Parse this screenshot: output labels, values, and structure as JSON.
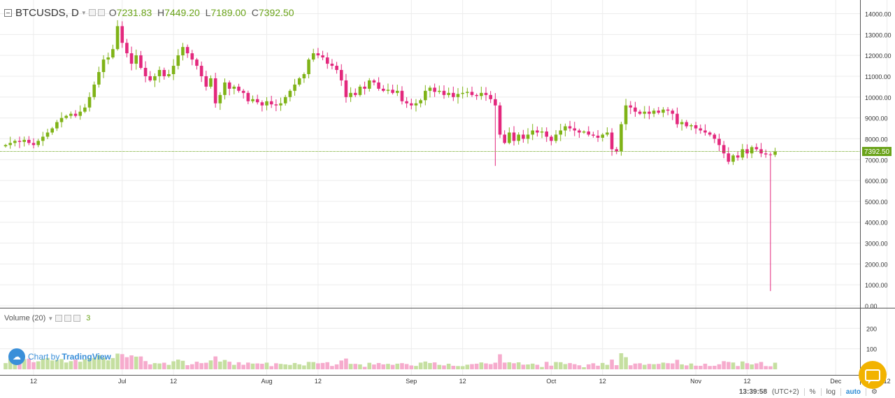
{
  "header": {
    "symbol": "BTCUSDS, D",
    "open_label": "O",
    "open": "7231.83",
    "high_label": "H",
    "high": "7449.20",
    "low_label": "L",
    "low": "7189.00",
    "close_label": "C",
    "close": "7392.50"
  },
  "volume_header": {
    "label": "Volume (20)",
    "value": "3"
  },
  "branding": {
    "prefix": "Chart by",
    "name": "TradingView"
  },
  "bottom_bar": {
    "time": "13:39:58",
    "timezone": "(UTC+2)",
    "percent": "%",
    "log": "log",
    "auto": "auto"
  },
  "colors": {
    "up": "#7fb317",
    "down": "#e3287d",
    "vol_up": "#c5dfa0",
    "vol_down": "#f6abcd",
    "price_line": "#6aa319",
    "grid": "#ececec"
  },
  "icons": [
    "collapse-icon",
    "chevron-down-icon",
    "settings-icon",
    "close-icon",
    "tradingview-cloud-icon",
    "chat-icon",
    "gear-icon"
  ],
  "chart_data": {
    "type": "candlestick",
    "price_axis": {
      "ylim": [
        0,
        14000
      ],
      "ticks": [
        "14000.00",
        "13000.00",
        "12000.00",
        "11000.00",
        "10000.00",
        "9000.00",
        "8000.00",
        "7000.00",
        "6000.00",
        "5000.00",
        "4000.00",
        "3000.00",
        "2000.00",
        "1000.00",
        "0.00"
      ]
    },
    "volume_axis": {
      "ylim": [
        0,
        300
      ],
      "ticks": [
        "200",
        "100"
      ]
    },
    "x_ticks": [
      {
        "label": "12",
        "bar": 6
      },
      {
        "label": "Jul",
        "bar": 25
      },
      {
        "label": "12",
        "bar": 36
      },
      {
        "label": "Aug",
        "bar": 56
      },
      {
        "label": "12",
        "bar": 67
      },
      {
        "label": "Sep",
        "bar": 87
      },
      {
        "label": "12",
        "bar": 98
      },
      {
        "label": "Oct",
        "bar": 117
      },
      {
        "label": "12",
        "bar": 128
      },
      {
        "label": "Nov",
        "bar": 148
      },
      {
        "label": "12",
        "bar": 159
      },
      {
        "label": "Dec",
        "bar": 178
      },
      {
        "label": "12",
        "bar": 189
      }
    ],
    "last_price": {
      "label": "7392.50",
      "value": 7392.5
    },
    "candles_close": [
      7700,
      7800,
      7900,
      7850,
      7950,
      7800,
      7700,
      7900,
      8100,
      8300,
      8500,
      8800,
      9000,
      9100,
      9200,
      9100,
      9300,
      9500,
      10000,
      10600,
      11200,
      11800,
      11900,
      12300,
      13400,
      12600,
      12100,
      11600,
      12000,
      11400,
      11000,
      10800,
      11000,
      11300,
      11000,
      11100,
      11500,
      12000,
      12400,
      12100,
      11800,
      11500,
      11000,
      10500,
      10900,
      9700,
      10100,
      10700,
      10400,
      10500,
      10300,
      10200,
      9800,
      9900,
      9750,
      9600,
      9800,
      9650,
      9600,
      9700,
      10000,
      10300,
      10600,
      10900,
      11100,
      11800,
      12100,
      12000,
      11900,
      11600,
      11500,
      11300,
      10800,
      10000,
      10200,
      10100,
      10500,
      10400,
      10800,
      10700,
      10400,
      10300,
      10350,
      10200,
      10300,
      9800,
      9700,
      9600,
      9700,
      9850,
      10300,
      10450,
      10250,
      10300,
      10100,
      10200,
      10000,
      10150,
      10200,
      10250,
      10100,
      10050,
      10200,
      10100,
      9900,
      9600,
      8200,
      7800,
      8300,
      7900,
      8200,
      8000,
      8200,
      8400,
      8300,
      8350,
      8100,
      7900,
      8200,
      8400,
      8600,
      8500,
      8400,
      8300,
      8350,
      8200,
      8150,
      8050,
      8200,
      8300,
      7500,
      7400,
      8700,
      9600,
      9500,
      9300,
      9200,
      9300,
      9200,
      9350,
      9250,
      9400,
      9350,
      9200,
      8700,
      8800,
      8600,
      8650,
      8500,
      8400,
      8300,
      8200,
      8000,
      7700,
      7300,
      6900,
      7200,
      7100,
      7500,
      7300,
      7600,
      7500,
      7300,
      7250,
      7231.83,
      7392.5
    ]
  }
}
